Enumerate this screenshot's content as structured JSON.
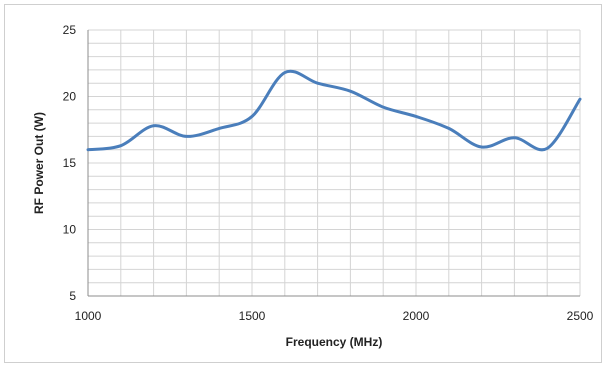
{
  "chart_data": {
    "type": "line",
    "xlabel": "Frequency (MHz)",
    "ylabel": "RF Power Out (W)",
    "xlim": [
      1000,
      2500
    ],
    "ylim": [
      5,
      25
    ],
    "x_ticks": [
      "1000",
      "1500",
      "2000",
      "2500"
    ],
    "y_ticks": [
      "5",
      "10",
      "15",
      "20",
      "25"
    ],
    "x_grid_step": 100,
    "y_grid_step": 1,
    "grid": true,
    "legend": "none",
    "series": [
      {
        "color": "#4a7ebb",
        "x": [
          1000,
          1100,
          1200,
          1300,
          1400,
          1500,
          1600,
          1700,
          1800,
          1900,
          2000,
          2100,
          2200,
          2300,
          2400,
          2500
        ],
        "y": [
          16.0,
          16.3,
          17.8,
          17.0,
          17.6,
          18.5,
          21.8,
          21.0,
          20.4,
          19.2,
          18.5,
          17.6,
          16.2,
          16.9,
          16.1,
          19.8
        ]
      }
    ]
  }
}
